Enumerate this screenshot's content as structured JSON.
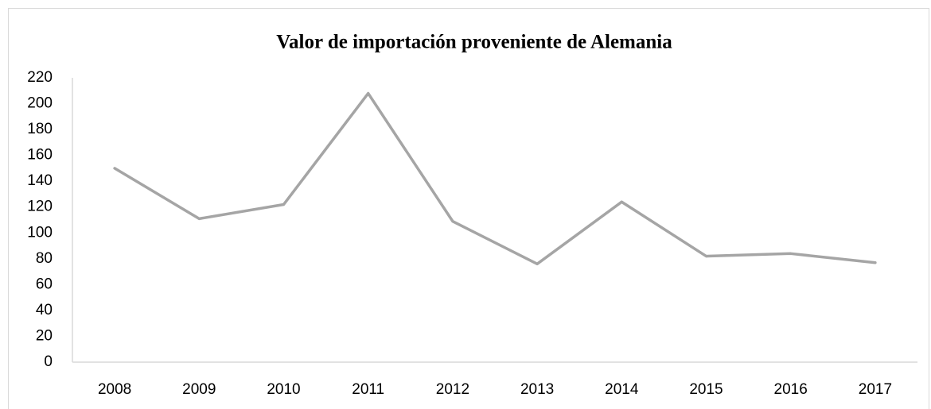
{
  "chart_data": {
    "type": "line",
    "title": "Valor de importación proveniente de Alemania",
    "categories": [
      "2008",
      "2009",
      "2010",
      "2011",
      "2012",
      "2013",
      "2014",
      "2015",
      "2016",
      "2017"
    ],
    "series": [
      {
        "name": null,
        "color": "#a5a5a5",
        "values": [
          150,
          111,
          122,
          208,
          109,
          76,
          124,
          82,
          84,
          77
        ]
      }
    ],
    "ylim": [
      0,
      220
    ],
    "yticks": [
      0,
      20,
      40,
      60,
      80,
      100,
      120,
      140,
      160,
      180,
      200,
      220
    ],
    "grid": false
  }
}
